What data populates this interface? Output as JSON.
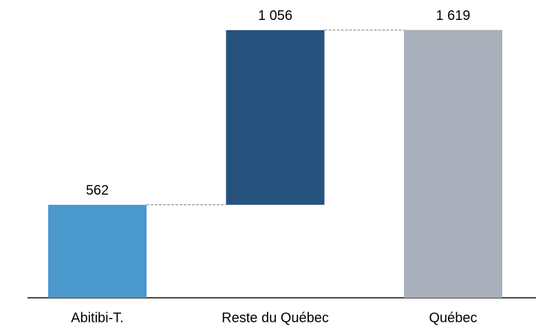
{
  "chart_data": {
    "type": "waterfall",
    "categories": [
      "Abitibi-T.",
      "Reste du Québec",
      "Québec"
    ],
    "values": [
      562,
      1056,
      1619
    ],
    "value_labels": [
      "562",
      "1 056",
      "1 619"
    ],
    "measures": [
      "relative",
      "relative",
      "total"
    ],
    "colors": [
      "#4a98cc",
      "#26527e",
      "#a9b0bb"
    ],
    "ylim": [
      0,
      1800
    ]
  }
}
